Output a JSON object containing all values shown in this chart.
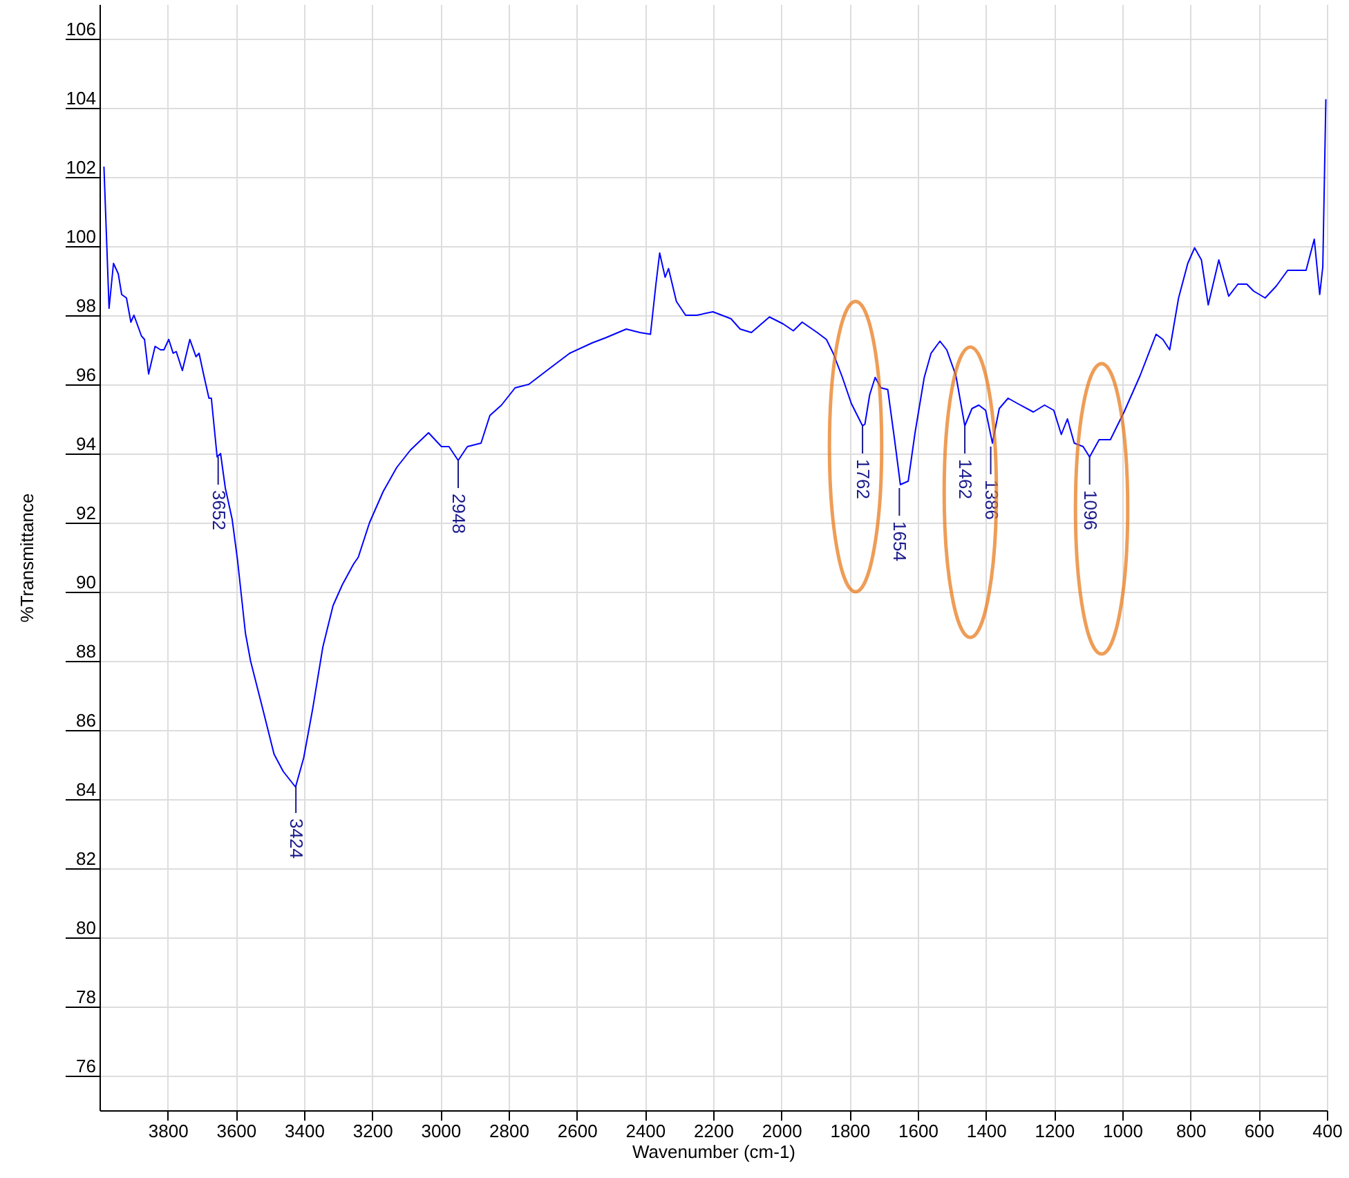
{
  "chart_data": {
    "type": "line",
    "xlabel": "Wavenumber (cm-1)",
    "ylabel": "%Transmittance",
    "xlim": [
      4000,
      400
    ],
    "ylim": [
      75,
      107
    ],
    "xticks": [
      3800,
      3600,
      3400,
      3200,
      3000,
      2800,
      2600,
      2400,
      2200,
      2000,
      1800,
      1600,
      1400,
      1200,
      1000,
      800,
      600,
      400
    ],
    "yticks": [
      76,
      78,
      80,
      82,
      84,
      86,
      88,
      90,
      92,
      94,
      96,
      98,
      100,
      102,
      104,
      106
    ],
    "grid": true,
    "marker": "none",
    "line_style": "solid",
    "series": [
      {
        "color": "#0000ff",
        "x": [
          3987,
          3972,
          3959,
          3945,
          3935,
          3921,
          3908,
          3899,
          3877,
          3868,
          3856,
          3837,
          3821,
          3811,
          3797,
          3784,
          3775,
          3757,
          3735,
          3717,
          3708,
          3695,
          3679,
          3672,
          3655,
          3645,
          3631,
          3611,
          3595,
          3572,
          3557,
          3521,
          3488,
          3461,
          3425,
          3401,
          3375,
          3345,
          3315,
          3288,
          3255,
          3241,
          3208,
          3168,
          3128,
          3088,
          3035,
          2997,
          2975,
          2948,
          2921,
          2881,
          2855,
          2821,
          2781,
          2741,
          2688,
          2621,
          2555,
          2515,
          2455,
          2415,
          2384,
          2368,
          2357,
          2341,
          2331,
          2308,
          2281,
          2248,
          2201,
          2148,
          2121,
          2088,
          2035,
          1995,
          1965,
          1939,
          1895,
          1868,
          1848,
          1821,
          1795,
          1762,
          1755,
          1741,
          1725,
          1708,
          1688,
          1668,
          1651,
          1628,
          1608,
          1581,
          1561,
          1535,
          1515,
          1488,
          1462,
          1441,
          1421,
          1401,
          1381,
          1361,
          1335,
          1308,
          1261,
          1228,
          1201,
          1179,
          1161,
          1141,
          1115,
          1096,
          1068,
          1035,
          995,
          948,
          901,
          881,
          861,
          835,
          808,
          788,
          768,
          748,
          717,
          688,
          661,
          635,
          615,
          581,
          548,
          515,
          461,
          437,
          421,
          412,
          403
        ],
        "values": [
          102.3,
          98.2,
          99.5,
          99.2,
          98.6,
          98.5,
          97.8,
          98.0,
          97.4,
          97.3,
          96.3,
          97.1,
          97.0,
          97.0,
          97.3,
          96.9,
          96.95,
          96.4,
          97.3,
          96.8,
          96.9,
          96.3,
          95.6,
          95.6,
          93.9,
          94.0,
          93.0,
          92.1,
          90.9,
          88.8,
          88.0,
          86.6,
          85.3,
          84.8,
          84.35,
          85.2,
          86.6,
          88.4,
          89.6,
          90.2,
          90.8,
          91.0,
          92.0,
          92.9,
          93.6,
          94.1,
          94.6,
          94.2,
          94.2,
          93.8,
          94.2,
          94.3,
          95.1,
          95.4,
          95.9,
          96.0,
          96.4,
          96.9,
          97.2,
          97.35,
          97.6,
          97.5,
          97.45,
          98.9,
          99.8,
          99.1,
          99.35,
          98.4,
          98.0,
          98.0,
          98.1,
          97.9,
          97.6,
          97.5,
          97.95,
          97.75,
          97.55,
          97.8,
          97.5,
          97.3,
          96.9,
          96.2,
          95.45,
          94.8,
          94.85,
          95.7,
          96.2,
          95.9,
          95.85,
          94.4,
          93.1,
          93.2,
          94.6,
          96.2,
          96.9,
          97.25,
          97.0,
          96.25,
          94.8,
          95.3,
          95.4,
          95.25,
          94.3,
          95.3,
          95.6,
          95.45,
          95.2,
          95.4,
          95.25,
          94.55,
          95.0,
          94.3,
          94.2,
          93.9,
          94.4,
          94.4,
          95.2,
          96.25,
          97.45,
          97.3,
          97.0,
          98.5,
          99.5,
          99.95,
          99.6,
          98.3,
          99.6,
          98.55,
          98.9,
          98.9,
          98.7,
          98.5,
          98.85,
          99.3,
          99.3,
          100.2,
          98.6,
          99.4,
          104.25
        ]
      }
    ],
    "annotations": [
      {
        "text": "3652",
        "x": 3652,
        "y": 93.9
      },
      {
        "text": "3424",
        "x": 3424,
        "y": 84.4
      },
      {
        "text": "2948",
        "x": 2948,
        "y": 93.8
      },
      {
        "text": "1762",
        "x": 1762,
        "y": 94.8
      },
      {
        "text": "1654",
        "x": 1654,
        "y": 93.0
      },
      {
        "text": "1462",
        "x": 1462,
        "y": 94.8
      },
      {
        "text": "1386",
        "x": 1386,
        "y": 94.2
      },
      {
        "text": "1096",
        "x": 1096,
        "y": 93.9
      }
    ]
  }
}
